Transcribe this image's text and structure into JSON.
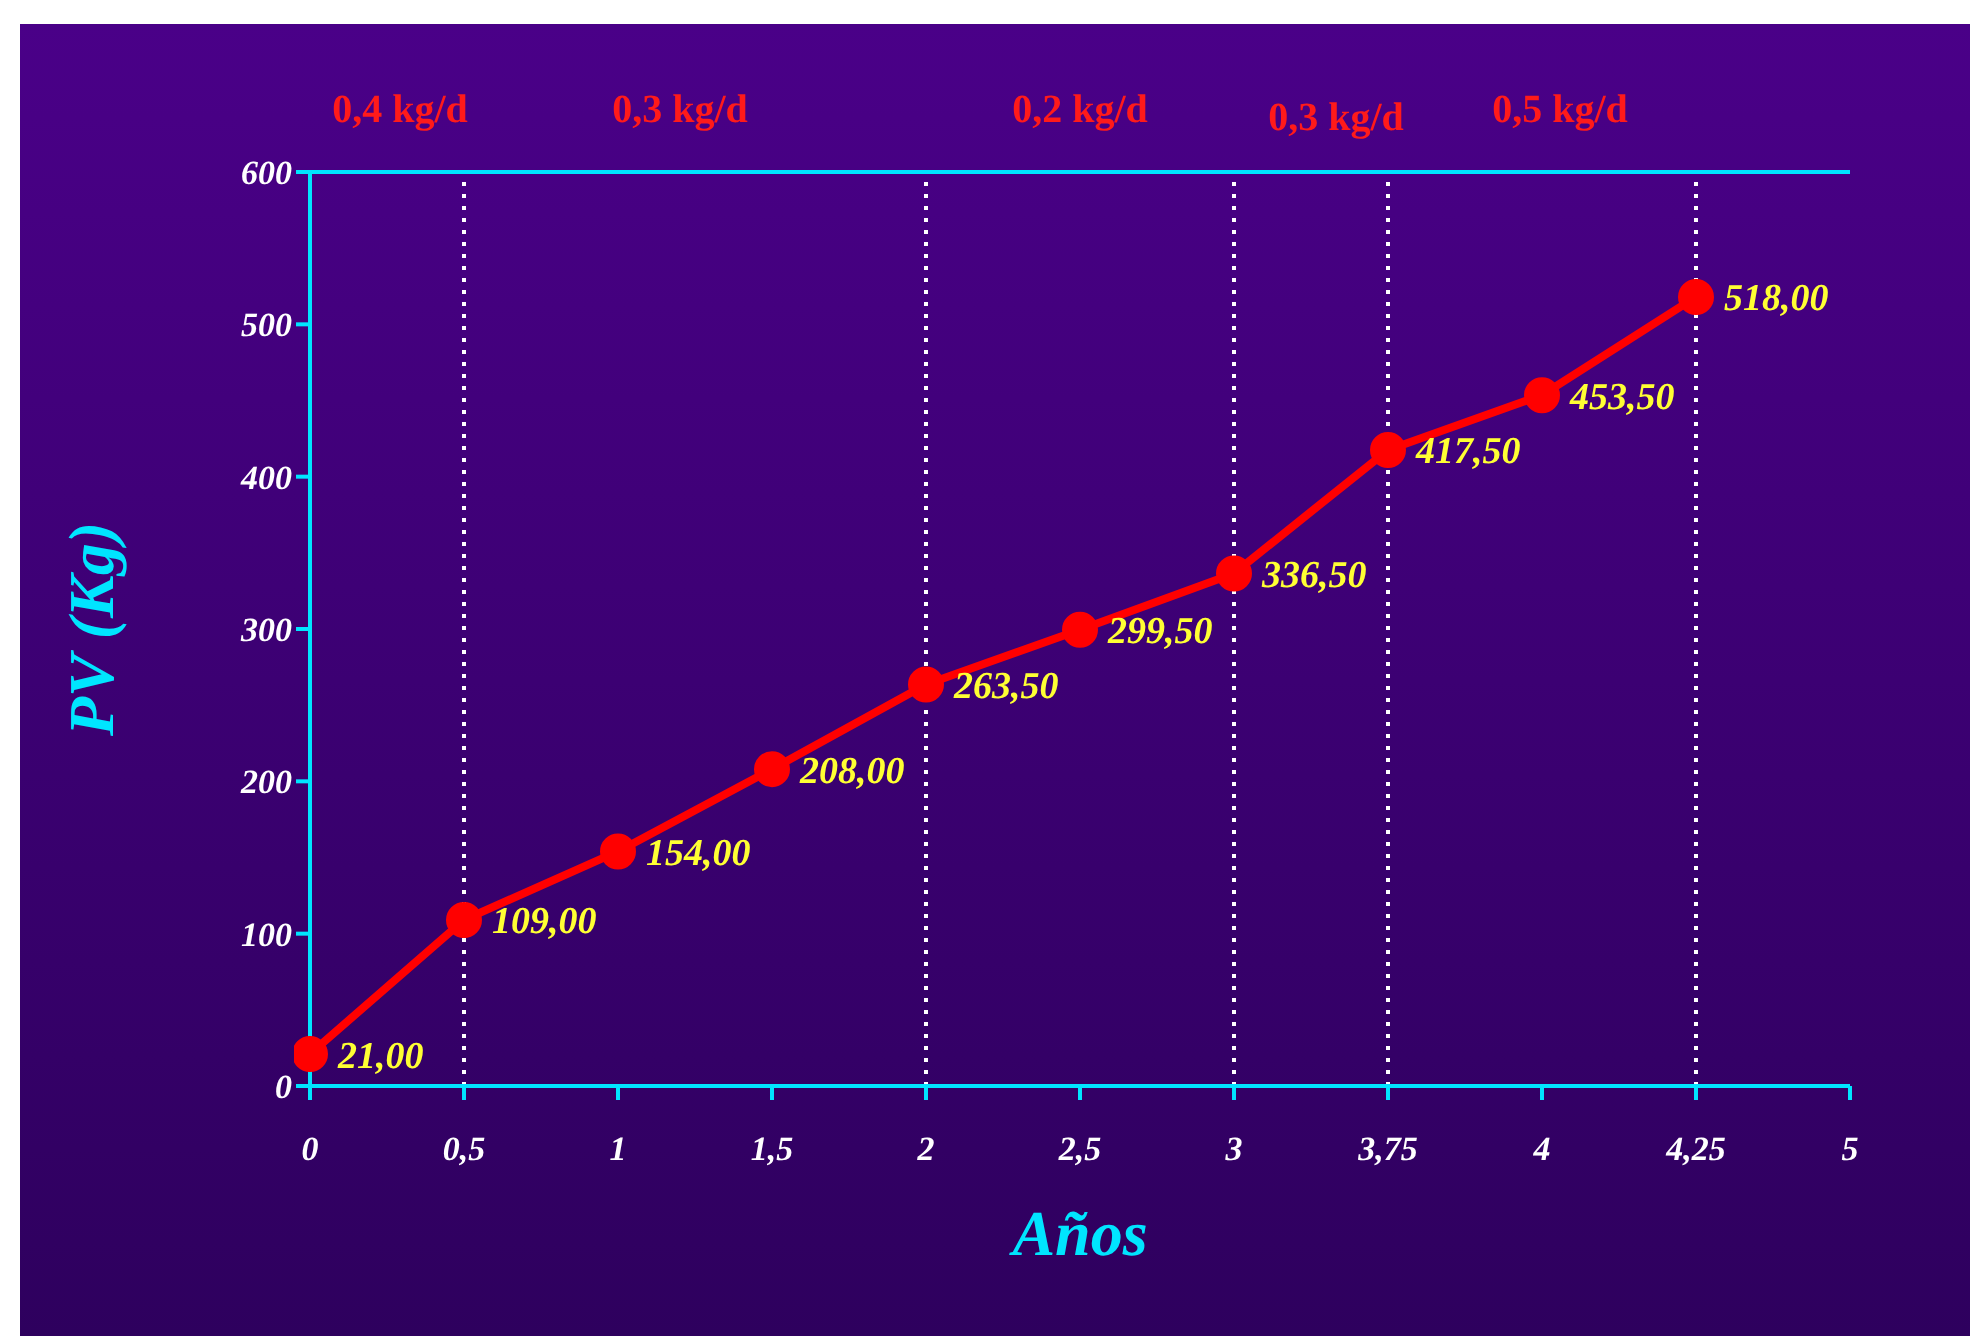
{
  "chart_data": {
    "type": "line",
    "xlabel": "Años",
    "ylabel": "PV (Kg)",
    "categories": [
      "0",
      "0,5",
      "1",
      "1,5",
      "2",
      "2,5",
      "3",
      "3,75",
      "4",
      "4,25",
      "5"
    ],
    "series": [
      {
        "color": "#ff0000",
        "values": [
          21,
          109,
          154,
          208,
          263.5,
          299.5,
          336.5,
          417.5,
          453.5,
          518,
          null
        ],
        "value_labels": [
          "21,00",
          "109,00",
          "154,00",
          "208,00",
          "263,50",
          "299,50",
          "336,50",
          "417,50",
          "453,50",
          "518,00",
          null
        ]
      }
    ],
    "ylim": [
      0,
      600
    ],
    "yticks": [
      0,
      100,
      200,
      300,
      400,
      500,
      600
    ],
    "marker": "circle",
    "line_style": "solid",
    "grid": false,
    "legend": false,
    "ref_lines": [
      {
        "axis": "x",
        "value": "0,5",
        "color": "#ffffff",
        "line_style": "dotted"
      },
      {
        "axis": "x",
        "value": "2",
        "color": "#ffffff",
        "line_style": "dotted"
      },
      {
        "axis": "x",
        "value": "3",
        "color": "#ffffff",
        "line_style": "dotted"
      },
      {
        "axis": "x",
        "value": "3,75",
        "color": "#ffffff",
        "line_style": "dotted"
      },
      {
        "axis": "x",
        "value": "4,25",
        "color": "#ffffff",
        "line_style": "dotted"
      }
    ],
    "annotations": [
      "0,4 kg/d",
      "0,3 kg/d",
      "0,2 kg/d",
      "0,3 kg/d",
      "0,5 kg/d"
    ]
  }
}
